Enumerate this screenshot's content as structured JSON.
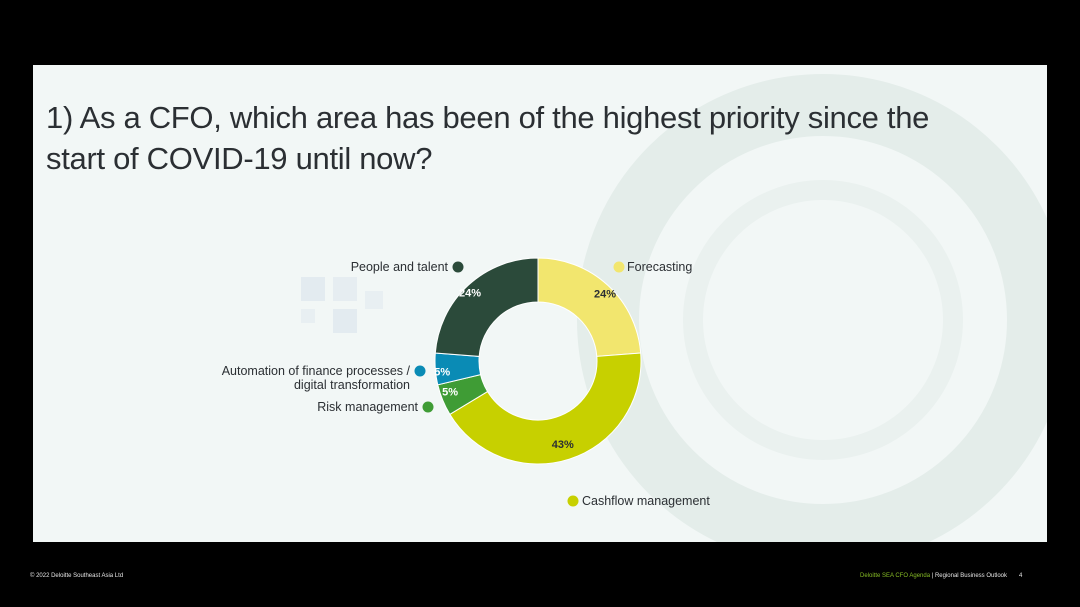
{
  "slide": {
    "question": "1) As a CFO, which area has been of the highest priority since the start of COVID-19 until now?"
  },
  "footer": {
    "copyright": "© 2022 Deloitte Southeast Asia Ltd",
    "agenda": "Deloitte SEA CFO Agenda",
    "separator": " | ",
    "section": "Regional Business Outlook",
    "page_number": "4"
  },
  "chart_data": {
    "type": "pie",
    "donut": true,
    "title": "",
    "categories": [
      "Forecasting",
      "Cashflow management",
      "Risk management",
      "Automation of finance processes / digital transformation",
      "People and talent"
    ],
    "values": [
      24,
      43,
      5,
      5,
      24
    ],
    "value_labels": [
      "24%",
      "43%",
      "5%",
      "5%",
      "24%"
    ],
    "colors": [
      "#f2e66e",
      "#c7d000",
      "#3f9c35",
      "#0a8bb5",
      "#2b4a3a"
    ],
    "label_colors": [
      "#2b2f33",
      "#2b2f33",
      "#ffffff",
      "#ffffff",
      "#ffffff"
    ],
    "legend_lines": [
      [
        "Forecasting"
      ],
      [
        "Cashflow management"
      ],
      [
        "Risk management"
      ],
      [
        "Automation of finance processes /",
        "digital transformation"
      ],
      [
        "People and talent"
      ]
    ]
  }
}
